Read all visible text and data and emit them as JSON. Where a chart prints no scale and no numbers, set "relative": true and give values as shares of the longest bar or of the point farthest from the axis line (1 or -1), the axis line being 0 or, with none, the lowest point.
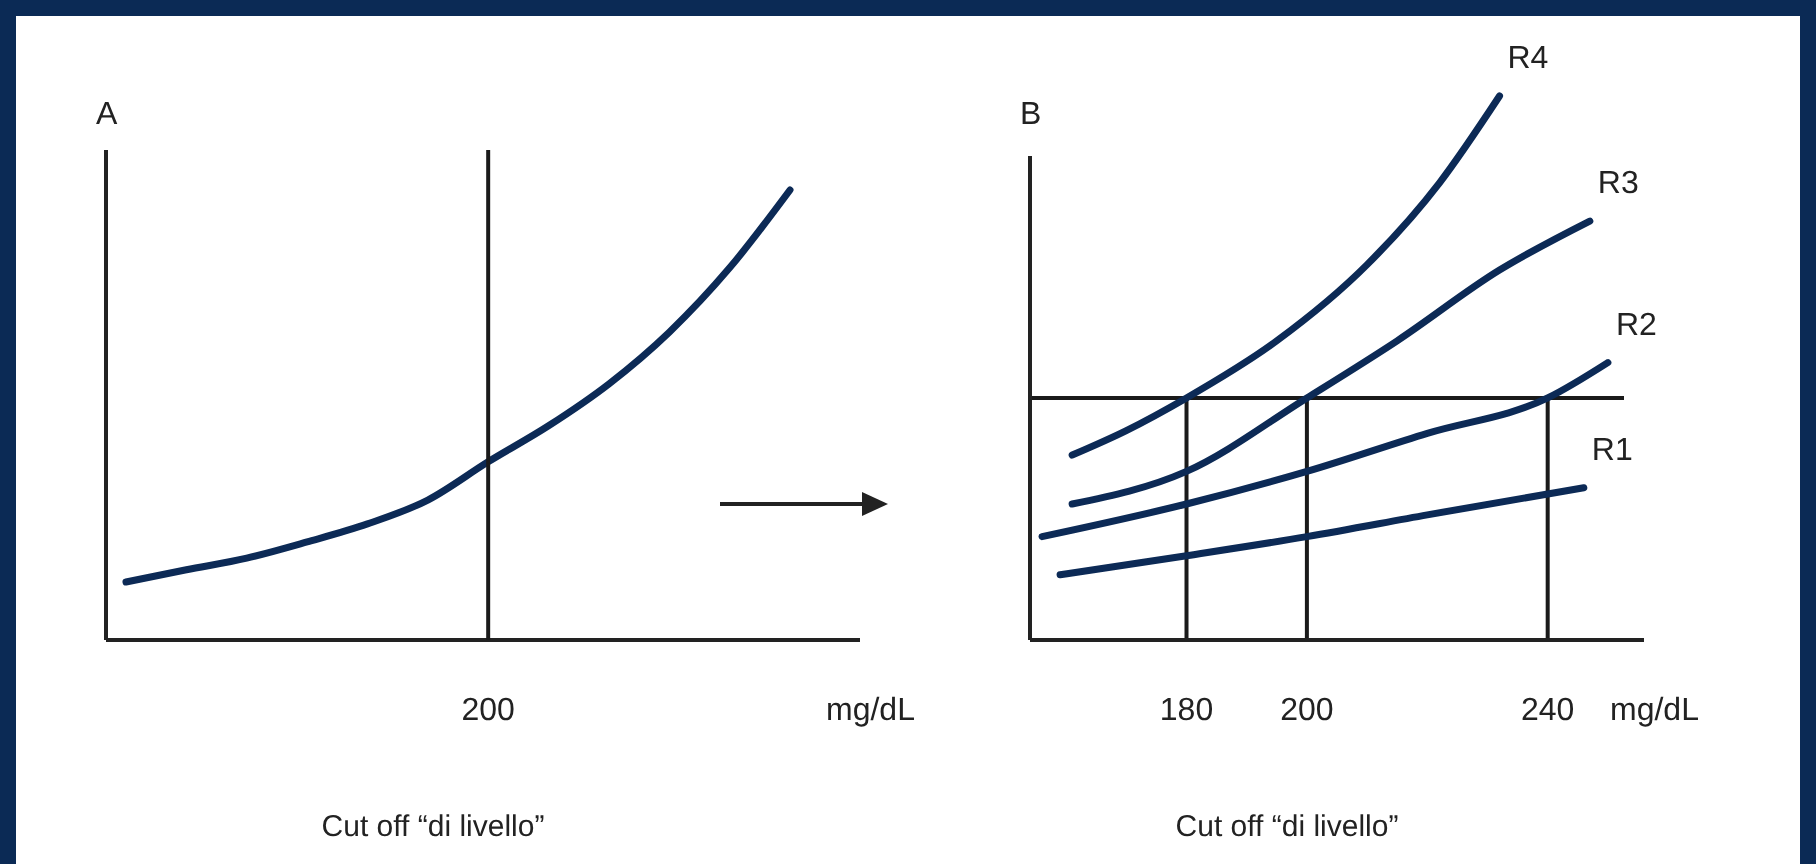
{
  "chart_data": [
    {
      "type": "line",
      "title": "A",
      "xlabel": "mg/dL",
      "annotations": [
        "200",
        "Cut off “di livello”"
      ],
      "relative": true,
      "tick_labels": "x",
      "legend": false,
      "categories": [
        null,
        null,
        null,
        null,
        null,
        null,
        null,
        null,
        null,
        null,
        null,
        null
      ],
      "series": [
        {
          "color": "#0c2a56",
          "values": [
            0.129,
            0.156,
            0.182,
            0.218,
            0.258,
            0.311,
            0.396,
            0.476,
            0.569,
            0.684,
            0.827,
            1.0
          ]
        }
      ]
    },
    {
      "type": "line",
      "title": "B",
      "xlabel": "mg/dL",
      "annotations": [
        "Cut off “di livello”"
      ],
      "relative": true,
      "xlim": [
        154,
        256
      ],
      "xticks": [
        180,
        200,
        240
      ],
      "tick_labels": "x",
      "legend": false,
      "series": [
        {
          "name": "R4",
          "color": "#0c2a56",
          "x": [
            161,
            170,
            180,
            195,
            210,
            222,
            232
          ],
          "values": [
            0.34,
            0.385,
            0.445,
            0.55,
            0.69,
            0.84,
            1.0
          ]
        },
        {
          "name": "R3",
          "color": "#0c2a56",
          "x": [
            161,
            180,
            200,
            215,
            232,
            247
          ],
          "values": [
            0.25,
            0.31,
            0.445,
            0.55,
            0.68,
            0.77
          ]
        },
        {
          "name": "R2",
          "color": "#0c2a56",
          "x": [
            156,
            180,
            200,
            220,
            240,
            250
          ],
          "values": [
            0.19,
            0.25,
            0.31,
            0.38,
            0.445,
            0.51
          ]
        },
        {
          "name": "R1",
          "color": "#0c2a56",
          "x": [
            159,
            180,
            200,
            220,
            246
          ],
          "values": [
            0.12,
            0.155,
            0.19,
            0.23,
            0.28
          ]
        }
      ],
      "ref_lines": [
        {
          "axis": "y",
          "value": 0.445,
          "color": "#1a1a1a"
        },
        {
          "axis": "x",
          "value": 180,
          "color": "#1a1a1a"
        },
        {
          "axis": "x",
          "value": 200,
          "color": "#1a1a1a"
        },
        {
          "axis": "x",
          "value": 240,
          "color": "#1a1a1a"
        }
      ]
    }
  ]
}
